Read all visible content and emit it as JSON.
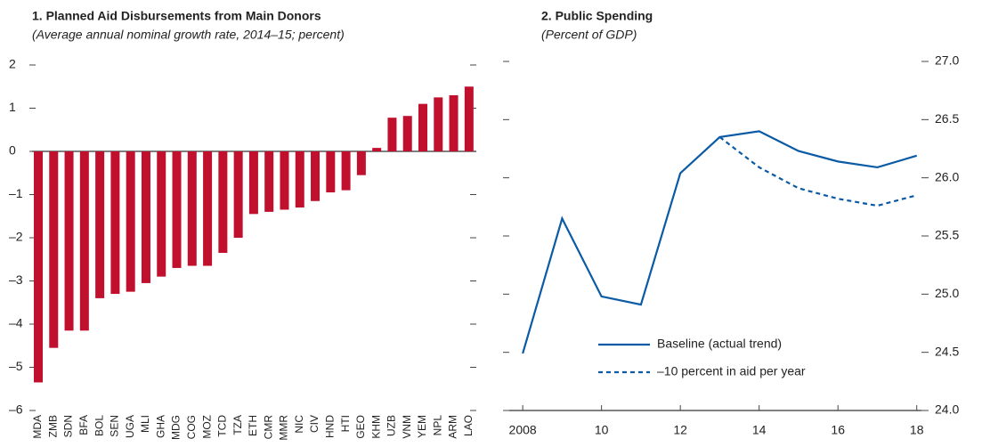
{
  "chart_data": [
    {
      "type": "bar",
      "title": "1. Planned Aid Disbursements from Main Donors",
      "subtitle": "(Average annual nominal growth rate, 2014–15; percent)",
      "categories": [
        "MDA",
        "ZMB",
        "SDN",
        "BFA",
        "BOL",
        "SEN",
        "UGA",
        "MLI",
        "GHA",
        "MDG",
        "COG",
        "MOZ",
        "TCD",
        "TZA",
        "ETH",
        "CMR",
        "MMR",
        "NIC",
        "CIV",
        "HND",
        "HTI",
        "GEO",
        "KHM",
        "UZB",
        "VNM",
        "YEM",
        "NPL",
        "ARM",
        "LAO"
      ],
      "values": [
        -5.35,
        -4.55,
        -4.15,
        -4.15,
        -3.4,
        -3.3,
        -3.25,
        -3.05,
        -2.9,
        -2.7,
        -2.65,
        -2.65,
        -2.35,
        -2.0,
        -1.45,
        -1.4,
        -1.35,
        -1.3,
        -1.15,
        -0.95,
        -0.9,
        -0.55,
        0.08,
        0.78,
        0.82,
        1.1,
        1.25,
        1.3,
        1.5
      ],
      "color": "#c0102e",
      "ylim": [
        -6,
        2
      ],
      "yticks": [
        2,
        1,
        0,
        {
          "value": -1,
          "label": "–1"
        },
        {
          "value": -2,
          "label": "–2"
        },
        {
          "value": -3,
          "label": "–3"
        },
        {
          "value": -4,
          "label": "–4"
        },
        {
          "value": -5,
          "label": "–5"
        },
        {
          "value": -6,
          "label": "–6"
        }
      ]
    },
    {
      "type": "line",
      "title": "2. Public Spending",
      "subtitle": "(Percent of GDP)",
      "x": [
        2008,
        2009,
        2010,
        2011,
        2012,
        2013,
        2014,
        2015,
        2016,
        2017,
        2018
      ],
      "series": [
        {
          "name": "Baseline (actual trend)",
          "color": "#0b5aa5",
          "style": "solid",
          "values": [
            24.49,
            25.65,
            24.98,
            24.91,
            26.04,
            26.35,
            26.4,
            26.23,
            26.14,
            26.09,
            26.19
          ]
        },
        {
          "name": "–10 percent in aid per year",
          "color": "#0b5aa5",
          "style": "dashed",
          "values": [
            null,
            null,
            null,
            null,
            null,
            26.35,
            26.09,
            25.91,
            25.82,
            25.76,
            25.85
          ]
        }
      ],
      "xlim": [
        2007.5,
        2018.3
      ],
      "xticks": [
        2008,
        {
          "value": 2010,
          "label": "10"
        },
        {
          "value": 2012,
          "label": "12"
        },
        {
          "value": 2014,
          "label": "14"
        },
        {
          "value": 2016,
          "label": "16"
        },
        {
          "value": 2018,
          "label": "18"
        }
      ],
      "ylim": [
        24,
        27
      ],
      "yticks": [
        {
          "value": 24,
          "label": "24.0"
        },
        {
          "value": 24.5,
          "label": "24.5"
        },
        {
          "value": 25,
          "label": "25.0"
        },
        {
          "value": 25.5,
          "label": "25.5"
        },
        {
          "value": 26,
          "label": "26.0"
        },
        {
          "value": 26.5,
          "label": "26.5"
        },
        {
          "value": 27,
          "label": "27.0"
        }
      ]
    }
  ]
}
